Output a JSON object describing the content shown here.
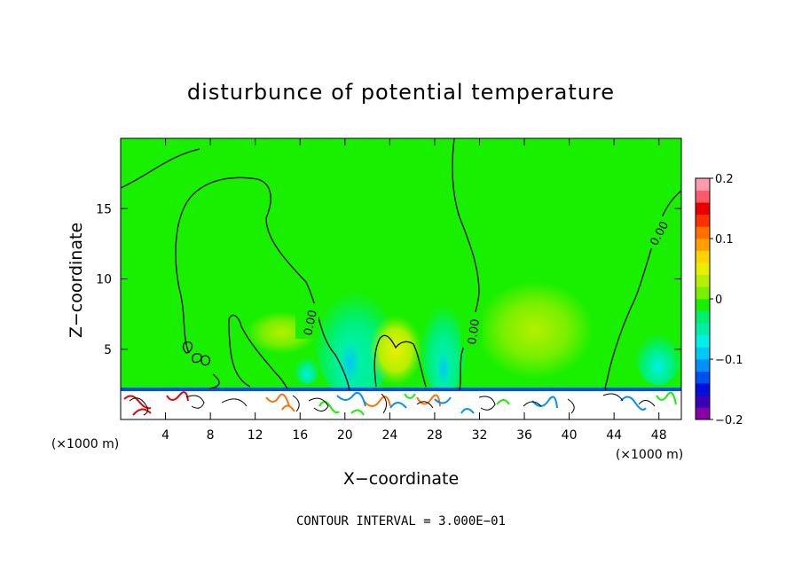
{
  "chart_data": {
    "type": "heatmap",
    "title": "disturbunce of potential temperature",
    "xlabel": "X−coordinate",
    "ylabel": "Z−coordinate",
    "x_unit_label": "(×1000 m)",
    "y_unit_label": "(×1000 m)",
    "xlim": [
      0,
      50
    ],
    "ylim": [
      0,
      20
    ],
    "x_ticks": [
      4,
      8,
      12,
      16,
      20,
      24,
      28,
      32,
      36,
      40,
      44,
      48
    ],
    "y_ticks": [
      5,
      10,
      15
    ],
    "colorbar": {
      "min": -0.2,
      "max": 0.2,
      "tick_values": [
        0.2,
        0.1,
        0,
        -0.1,
        -0.2
      ],
      "tick_labels": [
        "0.2",
        "0.1",
        "0",
        "−0.1",
        "−0.2"
      ],
      "colors": [
        "#8a00a8",
        "#3a00b8",
        "#0010d8",
        "#0050f0",
        "#0090f8",
        "#00c8f8",
        "#00f0e8",
        "#00f0a8",
        "#00f070",
        "#18f000",
        "#78f000",
        "#b4f000",
        "#e8f000",
        "#ffd200",
        "#ffa000",
        "#ff7000",
        "#ff3000",
        "#e80000",
        "#ff5a6a",
        "#ff9aaa"
      ]
    },
    "contour_label": "0.00",
    "contour_interval_text": "CONTOUR INTERVAL = 3.000E−01",
    "grid": false,
    "legend": "right colorbar",
    "background_value": 0
  }
}
